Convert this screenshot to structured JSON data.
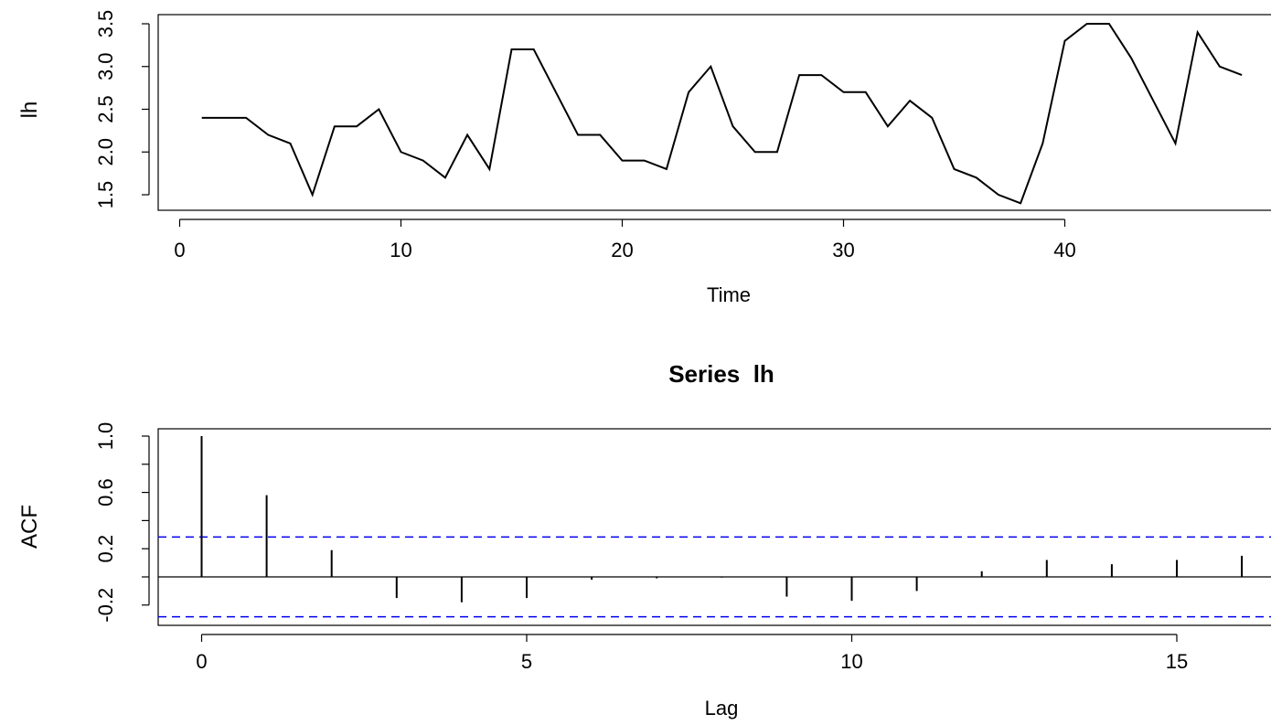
{
  "chart_data": [
    {
      "type": "line",
      "title": "",
      "xlabel": "Time",
      "ylabel": "lh",
      "xlim": [
        0,
        48
      ],
      "ylim": [
        1.4,
        3.5
      ],
      "xticks": [
        "0",
        "10",
        "20",
        "30",
        "40"
      ],
      "yticks": [
        "1.5",
        "2.0",
        "2.5",
        "3.0",
        "3.5"
      ],
      "grid": false,
      "series": [
        {
          "name": "",
          "color": "#000000",
          "x": [
            1,
            2,
            3,
            4,
            5,
            6,
            7,
            8,
            9,
            10,
            11,
            12,
            13,
            14,
            15,
            16,
            17,
            18,
            19,
            20,
            21,
            22,
            23,
            24,
            25,
            26,
            27,
            28,
            29,
            30,
            31,
            32,
            33,
            34,
            35,
            36,
            37,
            38,
            39,
            40,
            41,
            42,
            43,
            44,
            45,
            46,
            47,
            48
          ],
          "values": [
            2.4,
            2.4,
            2.4,
            2.2,
            2.1,
            1.5,
            2.3,
            2.3,
            2.5,
            2.0,
            1.9,
            1.7,
            2.2,
            1.8,
            3.2,
            3.2,
            2.7,
            2.2,
            2.2,
            1.9,
            1.9,
            1.8,
            2.7,
            3.0,
            2.3,
            2.0,
            2.0,
            2.9,
            2.9,
            2.7,
            2.7,
            2.3,
            2.6,
            2.4,
            1.8,
            1.7,
            1.5,
            1.4,
            2.1,
            3.3,
            3.5,
            3.5,
            3.1,
            2.6,
            2.1,
            3.4,
            3.0,
            2.9
          ]
        }
      ]
    },
    {
      "type": "bar",
      "title": "Series  lh",
      "xlabel": "Lag",
      "ylabel": "ACF",
      "xlim": [
        0,
        16
      ],
      "ylim": [
        -0.25,
        1.0
      ],
      "xticks": [
        "0",
        "5",
        "10",
        "15"
      ],
      "yticks": [
        "-0.2",
        "0.2",
        "0.6",
        "1.0"
      ],
      "grid": false,
      "confidence_bound": 0.283,
      "bound_color": "#0000ee",
      "lags": [
        0,
        1,
        2,
        3,
        4,
        5,
        6,
        7,
        8,
        9,
        10,
        11,
        12,
        13,
        14,
        15,
        16
      ],
      "values": [
        1.0,
        0.58,
        0.19,
        -0.15,
        -0.18,
        -0.15,
        -0.02,
        -0.01,
        -0.005,
        -0.14,
        -0.17,
        -0.1,
        0.04,
        0.12,
        0.09,
        0.12,
        0.15
      ]
    }
  ]
}
